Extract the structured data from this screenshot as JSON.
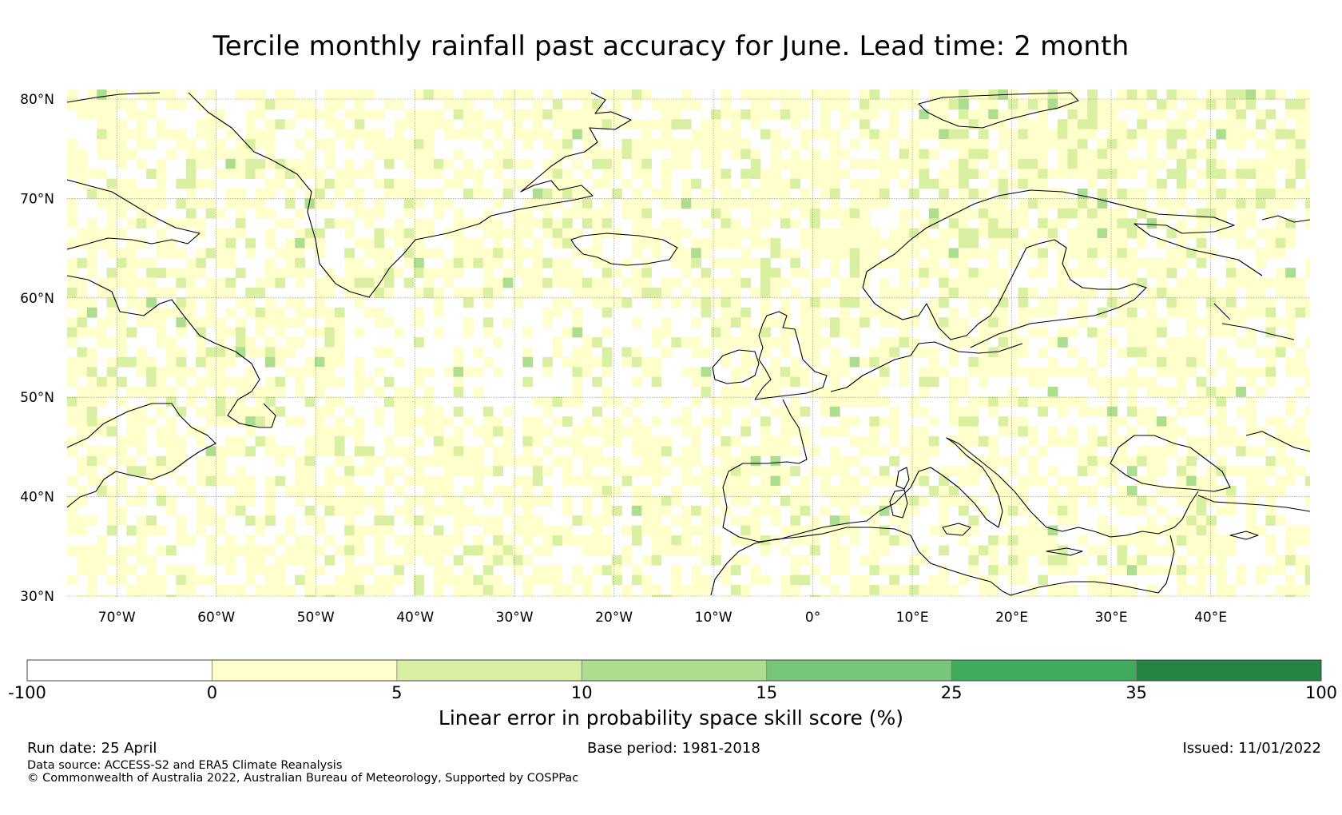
{
  "title": "Tercile monthly rainfall past accuracy for June. Lead time: 2 month",
  "map": {
    "lat_ticks": [
      "80°N",
      "70°N",
      "60°N",
      "50°N",
      "40°N",
      "30°N"
    ],
    "lon_ticks": [
      "70°W",
      "60°W",
      "50°W",
      "40°W",
      "30°W",
      "20°W",
      "10°W",
      "0°",
      "10°E",
      "20°E",
      "30°E",
      "40°E"
    ],
    "lat_values": [
      80,
      70,
      60,
      50,
      40,
      30
    ],
    "lon_values": [
      -70,
      -60,
      -50,
      -40,
      -30,
      -20,
      -10,
      0,
      10,
      20,
      30,
      40
    ],
    "extent": {
      "lon_min": -75,
      "lon_max": 50,
      "lat_min": 30,
      "lat_max": 81
    },
    "grid": true
  },
  "colorbar": {
    "ticks": [
      "-100",
      "0",
      "5",
      "10",
      "15",
      "25",
      "35",
      "100"
    ],
    "bins": [
      {
        "from": -100,
        "to": 0,
        "color": "#ffffff"
      },
      {
        "from": 0,
        "to": 5,
        "color": "#ffffcc"
      },
      {
        "from": 5,
        "to": 10,
        "color": "#d9f0a3"
      },
      {
        "from": 10,
        "to": 15,
        "color": "#addd8e"
      },
      {
        "from": 15,
        "to": 25,
        "color": "#78c679"
      },
      {
        "from": 25,
        "to": 35,
        "color": "#41ab5d"
      },
      {
        "from": 35,
        "to": 100,
        "color": "#238443"
      }
    ],
    "label": "Linear error in probability space skill score (%)"
  },
  "footer": {
    "run_date": "Run date: 25 April",
    "base_period": "Base period: 1981-2018",
    "issued": "Issued: 11/01/2022",
    "data_source": "Data source: ACCESS-S2 and ERA5 Climate Reanalysis",
    "copyright": "© Commonwealth of Australia 2022, Australian Bureau of Meteorology, Supported by COSPPac"
  }
}
